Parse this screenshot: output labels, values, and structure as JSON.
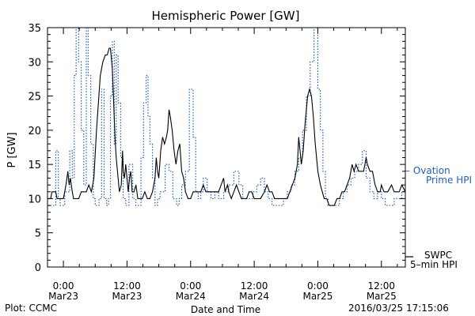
{
  "chart_data": {
    "type": "line",
    "title": "Hemispheric Power [GW]",
    "xlabel": "Date and Time",
    "ylabel": "P [GW]",
    "ylim": [
      0,
      35
    ],
    "xlim": [
      -0.125,
      2.688
    ],
    "grid": false,
    "legend_position": "right, outside plot",
    "yticks": [
      0,
      5,
      10,
      15,
      20,
      25,
      30,
      35
    ],
    "xticks": [
      {
        "t": 0.0,
        "line1": "0:00",
        "line2": "Mar23"
      },
      {
        "t": 0.5,
        "line1": "12:00",
        "line2": "Mar23"
      },
      {
        "t": 1.0,
        "line1": "0:00",
        "line2": "Mar24"
      },
      {
        "t": 1.5,
        "line1": "12:00",
        "line2": "Mar24"
      },
      {
        "t": 2.0,
        "line1": "0:00",
        "line2": "Mar25"
      },
      {
        "t": 2.5,
        "line1": "12:00",
        "line2": "Mar25"
      }
    ],
    "x_unit": "days since 2016-03-23 00:00 UTC",
    "series": [
      {
        "name": "Ovation Prime HPI",
        "label_lines": [
          "– Ovation",
          "Prime HPI"
        ],
        "color": "#1f5fbf",
        "style": "dotted-step",
        "points": [
          [
            -0.125,
            9
          ],
          [
            -0.09,
            9
          ],
          [
            -0.06,
            9
          ],
          [
            -0.04,
            17
          ],
          [
            -0.025,
            10
          ],
          [
            -0.01,
            9
          ],
          [
            0.01,
            9
          ],
          [
            0.03,
            11
          ],
          [
            0.05,
            11
          ],
          [
            0.07,
            17
          ],
          [
            0.085,
            13
          ],
          [
            0.1,
            28
          ],
          [
            0.12,
            36
          ],
          [
            0.14,
            30
          ],
          [
            0.16,
            20
          ],
          [
            0.18,
            12
          ],
          [
            0.195,
            37
          ],
          [
            0.215,
            28
          ],
          [
            0.235,
            18
          ],
          [
            0.25,
            10
          ],
          [
            0.26,
            9
          ],
          [
            0.28,
            9
          ],
          [
            0.3,
            10
          ],
          [
            0.32,
            26
          ],
          [
            0.34,
            10
          ],
          [
            0.355,
            9
          ],
          [
            0.37,
            10
          ],
          [
            0.385,
            25
          ],
          [
            0.4,
            33
          ],
          [
            0.415,
            18
          ],
          [
            0.43,
            31
          ],
          [
            0.45,
            24
          ],
          [
            0.47,
            16
          ],
          [
            0.49,
            10
          ],
          [
            0.515,
            9
          ],
          [
            0.545,
            15
          ],
          [
            0.57,
            10
          ],
          [
            0.59,
            9
          ],
          [
            0.61,
            9
          ],
          [
            0.63,
            16
          ],
          [
            0.65,
            24
          ],
          [
            0.665,
            28
          ],
          [
            0.68,
            22
          ],
          [
            0.7,
            18
          ],
          [
            0.72,
            13
          ],
          [
            0.74,
            9
          ],
          [
            0.76,
            10
          ],
          [
            0.8,
            11
          ],
          [
            0.83,
            15
          ],
          [
            0.86,
            14
          ],
          [
            0.89,
            10
          ],
          [
            0.91,
            9
          ],
          [
            0.93,
            10
          ],
          [
            0.96,
            12
          ],
          [
            0.99,
            14
          ],
          [
            1.02,
            26
          ],
          [
            1.04,
            19
          ],
          [
            1.06,
            11
          ],
          [
            1.08,
            10
          ],
          [
            1.1,
            11
          ],
          [
            1.13,
            13
          ],
          [
            1.16,
            11
          ],
          [
            1.19,
            10
          ],
          [
            1.22,
            11
          ],
          [
            1.26,
            10
          ],
          [
            1.3,
            11
          ],
          [
            1.34,
            12
          ],
          [
            1.38,
            14
          ],
          [
            1.41,
            12
          ],
          [
            1.45,
            10
          ],
          [
            1.49,
            10
          ],
          [
            1.52,
            11
          ],
          [
            1.55,
            12
          ],
          [
            1.58,
            13
          ],
          [
            1.61,
            11
          ],
          [
            1.64,
            10
          ],
          [
            1.67,
            9
          ],
          [
            1.7,
            9
          ],
          [
            1.73,
            9
          ],
          [
            1.76,
            10
          ],
          [
            1.79,
            11
          ],
          [
            1.82,
            12
          ],
          [
            1.85,
            14
          ],
          [
            1.88,
            16
          ],
          [
            1.91,
            20
          ],
          [
            1.94,
            25
          ],
          [
            1.97,
            30
          ],
          [
            2.0,
            36
          ],
          [
            2.02,
            26
          ],
          [
            2.04,
            20
          ],
          [
            2.06,
            14
          ],
          [
            2.08,
            10
          ],
          [
            2.11,
            9
          ],
          [
            2.14,
            9
          ],
          [
            2.17,
            9
          ],
          [
            2.2,
            10
          ],
          [
            2.23,
            11
          ],
          [
            2.26,
            12
          ],
          [
            2.29,
            13
          ],
          [
            2.32,
            14
          ],
          [
            2.35,
            15
          ],
          [
            2.38,
            17
          ],
          [
            2.41,
            13
          ],
          [
            2.44,
            11
          ],
          [
            2.47,
            10
          ],
          [
            2.5,
            11
          ],
          [
            2.53,
            10
          ],
          [
            2.56,
            9
          ],
          [
            2.6,
            9
          ],
          [
            2.63,
            10
          ],
          [
            2.66,
            10
          ],
          [
            2.688,
            11
          ]
        ]
      },
      {
        "name": "SWPC 5-min HPI",
        "label_lines": [
          "SWPC",
          "5–min HPI"
        ],
        "color": "#000000",
        "style": "solid",
        "points": [
          [
            -0.125,
            10
          ],
          [
            -0.1,
            10
          ],
          [
            -0.09,
            11
          ],
          [
            -0.06,
            11
          ],
          [
            -0.05,
            10
          ],
          [
            -0.02,
            10
          ],
          [
            0.0,
            10
          ],
          [
            0.02,
            12
          ],
          [
            0.035,
            14
          ],
          [
            0.045,
            12
          ],
          [
            0.055,
            13
          ],
          [
            0.07,
            11
          ],
          [
            0.08,
            10
          ],
          [
            0.1,
            10
          ],
          [
            0.12,
            10
          ],
          [
            0.14,
            11
          ],
          [
            0.16,
            11
          ],
          [
            0.18,
            11
          ],
          [
            0.2,
            12
          ],
          [
            0.22,
            11
          ],
          [
            0.24,
            13
          ],
          [
            0.26,
            20
          ],
          [
            0.275,
            24
          ],
          [
            0.29,
            28
          ],
          [
            0.31,
            30
          ],
          [
            0.33,
            31
          ],
          [
            0.345,
            31
          ],
          [
            0.36,
            32
          ],
          [
            0.37,
            32
          ],
          [
            0.385,
            29
          ],
          [
            0.395,
            24
          ],
          [
            0.405,
            19
          ],
          [
            0.415,
            16
          ],
          [
            0.43,
            13
          ],
          [
            0.44,
            11
          ],
          [
            0.455,
            12
          ],
          [
            0.465,
            17
          ],
          [
            0.47,
            14
          ],
          [
            0.48,
            13
          ],
          [
            0.49,
            15
          ],
          [
            0.5,
            13
          ],
          [
            0.51,
            11
          ],
          [
            0.52,
            13
          ],
          [
            0.53,
            14
          ],
          [
            0.54,
            11
          ],
          [
            0.555,
            11
          ],
          [
            0.57,
            12
          ],
          [
            0.585,
            10
          ],
          [
            0.6,
            10
          ],
          [
            0.62,
            10
          ],
          [
            0.64,
            11
          ],
          [
            0.66,
            10
          ],
          [
            0.68,
            10
          ],
          [
            0.7,
            11
          ],
          [
            0.72,
            13
          ],
          [
            0.73,
            16
          ],
          [
            0.74,
            14
          ],
          [
            0.75,
            13
          ],
          [
            0.765,
            17
          ],
          [
            0.78,
            19
          ],
          [
            0.795,
            18
          ],
          [
            0.81,
            19
          ],
          [
            0.82,
            20
          ],
          [
            0.83,
            23
          ],
          [
            0.84,
            22
          ],
          [
            0.855,
            20
          ],
          [
            0.87,
            17
          ],
          [
            0.885,
            15
          ],
          [
            0.9,
            17
          ],
          [
            0.915,
            18
          ],
          [
            0.93,
            14
          ],
          [
            0.945,
            13
          ],
          [
            0.96,
            11
          ],
          [
            0.98,
            10
          ],
          [
            1.0,
            10
          ],
          [
            1.02,
            11
          ],
          [
            1.04,
            11
          ],
          [
            1.06,
            11
          ],
          [
            1.08,
            11
          ],
          [
            1.1,
            12
          ],
          [
            1.12,
            11
          ],
          [
            1.14,
            11
          ],
          [
            1.16,
            11
          ],
          [
            1.18,
            11
          ],
          [
            1.2,
            11
          ],
          [
            1.22,
            11
          ],
          [
            1.24,
            12
          ],
          [
            1.26,
            13
          ],
          [
            1.27,
            11
          ],
          [
            1.29,
            12
          ],
          [
            1.3,
            11
          ],
          [
            1.32,
            10
          ],
          [
            1.34,
            11
          ],
          [
            1.36,
            12
          ],
          [
            1.38,
            11
          ],
          [
            1.4,
            10
          ],
          [
            1.42,
            10
          ],
          [
            1.44,
            10
          ],
          [
            1.46,
            11
          ],
          [
            1.48,
            11
          ],
          [
            1.5,
            10
          ],
          [
            1.52,
            10
          ],
          [
            1.55,
            10
          ],
          [
            1.58,
            11
          ],
          [
            1.6,
            12
          ],
          [
            1.62,
            11
          ],
          [
            1.64,
            11
          ],
          [
            1.66,
            10
          ],
          [
            1.68,
            10
          ],
          [
            1.7,
            10
          ],
          [
            1.72,
            10
          ],
          [
            1.74,
            10
          ],
          [
            1.76,
            10
          ],
          [
            1.78,
            11
          ],
          [
            1.8,
            12
          ],
          [
            1.82,
            13
          ],
          [
            1.84,
            15
          ],
          [
            1.85,
            19
          ],
          [
            1.86,
            17
          ],
          [
            1.87,
            15
          ],
          [
            1.885,
            17
          ],
          [
            1.9,
            21
          ],
          [
            1.92,
            25
          ],
          [
            1.935,
            26
          ],
          [
            1.95,
            25
          ],
          [
            1.965,
            22
          ],
          [
            1.98,
            18
          ],
          [
            2.0,
            14
          ],
          [
            2.02,
            12
          ],
          [
            2.035,
            11
          ],
          [
            2.05,
            10
          ],
          [
            2.07,
            10
          ],
          [
            2.09,
            9
          ],
          [
            2.11,
            9
          ],
          [
            2.13,
            9
          ],
          [
            2.15,
            10
          ],
          [
            2.17,
            10
          ],
          [
            2.19,
            11
          ],
          [
            2.21,
            11
          ],
          [
            2.23,
            12
          ],
          [
            2.25,
            13
          ],
          [
            2.27,
            15
          ],
          [
            2.285,
            14
          ],
          [
            2.3,
            15
          ],
          [
            2.32,
            14
          ],
          [
            2.34,
            14
          ],
          [
            2.36,
            14
          ],
          [
            2.38,
            16
          ],
          [
            2.39,
            15
          ],
          [
            2.41,
            14
          ],
          [
            2.43,
            14
          ],
          [
            2.45,
            12
          ],
          [
            2.47,
            11
          ],
          [
            2.49,
            11
          ],
          [
            2.5,
            12
          ],
          [
            2.52,
            11
          ],
          [
            2.55,
            11
          ],
          [
            2.58,
            12
          ],
          [
            2.6,
            11
          ],
          [
            2.62,
            11
          ],
          [
            2.64,
            11
          ],
          [
            2.66,
            12
          ],
          [
            2.688,
            11
          ]
        ]
      }
    ]
  },
  "footer": {
    "left": "Plot: CCMC",
    "timestamp": "2016/03/25 17:15:06"
  }
}
